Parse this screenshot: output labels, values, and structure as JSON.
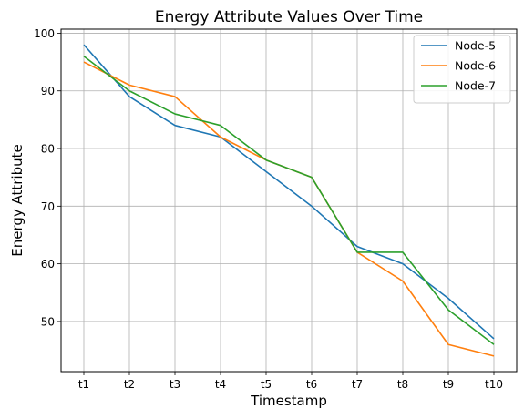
{
  "chart_data": {
    "type": "line",
    "title": "Energy Attribute Values Over Time",
    "xlabel": "Timestamp",
    "ylabel": "Energy Attribute",
    "categories": [
      "t1",
      "t2",
      "t3",
      "t4",
      "t5",
      "t6",
      "t7",
      "t8",
      "t9",
      "t10"
    ],
    "ylim": [
      41.3,
      100.7
    ],
    "yticks": [
      50,
      60,
      70,
      80,
      90,
      100
    ],
    "grid": true,
    "legend_position": "top-right",
    "series": [
      {
        "name": "Node-5",
        "color": "#1f77b4",
        "values": [
          98,
          89,
          84,
          82,
          76,
          70,
          63,
          60,
          54,
          47
        ]
      },
      {
        "name": "Node-6",
        "color": "#ff7f0e",
        "values": [
          95,
          91,
          89,
          82,
          78,
          75,
          62,
          57,
          46,
          44
        ]
      },
      {
        "name": "Node-7",
        "color": "#2ca02c",
        "values": [
          96,
          90,
          86,
          84,
          78,
          75,
          62,
          62,
          52,
          46
        ]
      }
    ]
  }
}
